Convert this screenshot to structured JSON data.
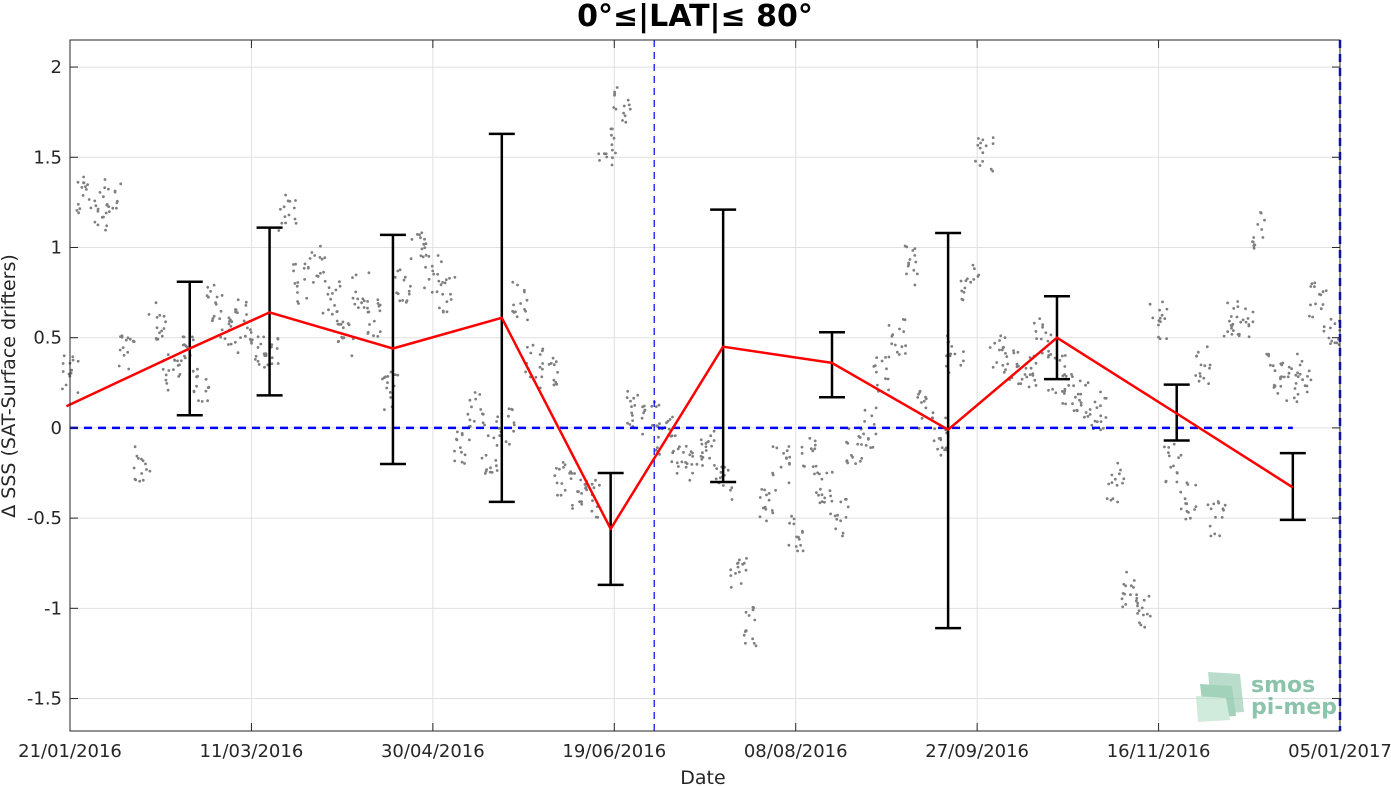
{
  "chart_data": {
    "type": "line",
    "title": "0°≤|LAT|≤ 80°",
    "xlabel": "Date",
    "ylabel": "Δ SSS (SAT-Surface drifters)",
    "x_range": [
      "2016-01-21",
      "2017-01-05"
    ],
    "ylim": [
      -1.68,
      2.15
    ],
    "grid": true,
    "x_tick_labels": [
      "21/01/2016",
      "11/03/2016",
      "30/04/2016",
      "19/06/2016",
      "08/08/2016",
      "27/09/2016",
      "16/11/2016",
      "05/01/2017"
    ],
    "x_tick_dates": [
      "2016-01-21",
      "2016-03-11",
      "2016-04-30",
      "2016-06-19",
      "2016-08-08",
      "2016-09-27",
      "2016-11-16",
      "2017-01-05"
    ],
    "y_ticks": [
      -1.5,
      -1,
      -0.5,
      0,
      0.5,
      1,
      1.5,
      2
    ],
    "y_tick_labels": [
      "-1.5",
      "-1",
      "-0.5",
      "0",
      "0.5",
      "1",
      "1.5",
      "2"
    ],
    "series": [
      {
        "style": "red line",
        "x": [
          "2016-01-20",
          "2016-02-23",
          "2016-03-16",
          "2016-04-19",
          "2016-05-19",
          "2016-06-18",
          "2016-07-19",
          "2016-08-18",
          "2016-09-19",
          "2016-10-19",
          "2016-11-21",
          "2016-12-23"
        ],
        "y": [
          0.12,
          0.44,
          0.64,
          0.44,
          0.61,
          -0.56,
          0.45,
          0.36,
          -0.01,
          0.5,
          0.08,
          -0.33
        ]
      },
      {
        "style": "black error bars",
        "x": [
          "2016-02-23",
          "2016-03-16",
          "2016-04-19",
          "2016-05-19",
          "2016-06-18",
          "2016-07-19",
          "2016-08-18",
          "2016-09-19",
          "2016-10-19",
          "2016-11-21",
          "2016-12-23"
        ],
        "low": [
          0.07,
          0.18,
          -0.2,
          -0.41,
          -0.87,
          -0.3,
          0.17,
          -1.11,
          0.27,
          -0.07,
          -0.51
        ],
        "high": [
          0.81,
          1.11,
          1.07,
          1.63,
          -0.25,
          1.21,
          0.53,
          1.08,
          0.73,
          0.24,
          -0.14
        ]
      },
      {
        "style": "grey scatter",
        "x": [
          "2016-01-21",
          "2016-01-25",
          "2016-01-29",
          "2016-02-02",
          "2016-02-06",
          "2016-02-10",
          "2016-02-14",
          "2016-02-18",
          "2016-02-22",
          "2016-02-26",
          "2016-03-01",
          "2016-03-05",
          "2016-03-09",
          "2016-03-13",
          "2016-03-17",
          "2016-03-21",
          "2016-03-25",
          "2016-03-29",
          "2016-04-02",
          "2016-04-06",
          "2016-04-10",
          "2016-04-14",
          "2016-04-18",
          "2016-04-22",
          "2016-04-26",
          "2016-04-30",
          "2016-05-04",
          "2016-05-08",
          "2016-05-12",
          "2016-05-16",
          "2016-05-20",
          "2016-05-24",
          "2016-05-28",
          "2016-06-01",
          "2016-06-05",
          "2016-06-09",
          "2016-06-13",
          "2016-06-17",
          "2016-06-21",
          "2016-06-25",
          "2016-06-29",
          "2016-07-03",
          "2016-07-07",
          "2016-07-11",
          "2016-07-15",
          "2016-07-19",
          "2016-07-23",
          "2016-07-27",
          "2016-07-31",
          "2016-08-04",
          "2016-08-08",
          "2016-08-12",
          "2016-08-16",
          "2016-08-20",
          "2016-08-24",
          "2016-08-28",
          "2016-09-01",
          "2016-09-05",
          "2016-09-09",
          "2016-09-13",
          "2016-09-17",
          "2016-09-21",
          "2016-09-25",
          "2016-09-29",
          "2016-10-03",
          "2016-10-07",
          "2016-10-11",
          "2016-10-15",
          "2016-10-19",
          "2016-10-23",
          "2016-10-27",
          "2016-10-31",
          "2016-11-04",
          "2016-11-08",
          "2016-11-12",
          "2016-11-16",
          "2016-11-20",
          "2016-11-24",
          "2016-11-28",
          "2016-12-02",
          "2016-12-06",
          "2016-12-10",
          "2016-12-14",
          "2016-12-18",
          "2016-12-22",
          "2016-12-26",
          "2016-12-30",
          "2017-01-03"
        ],
        "y": [
          0.3,
          1.3,
          1.2,
          1.3,
          0.4,
          -0.2,
          0.6,
          0.3,
          0.4,
          0.25,
          0.7,
          0.5,
          0.6,
          0.45,
          0.4,
          1.2,
          0.8,
          0.9,
          0.7,
          0.5,
          0.75,
          0.6,
          0.2,
          0.8,
          1.0,
          0.85,
          0.75,
          -0.1,
          0.1,
          -0.15,
          0.0,
          0.7,
          0.35,
          0.3,
          -0.3,
          -0.35,
          -0.4,
          1.55,
          1.8,
          0.1,
          0.05,
          -0.05,
          -0.15,
          -0.2,
          -0.1,
          -0.3,
          -0.8,
          -1.1,
          -0.45,
          -0.2,
          -0.6,
          -0.15,
          -0.35,
          -0.5,
          -0.1,
          0.0,
          0.3,
          0.5,
          0.9,
          0.1,
          -0.05,
          0.4,
          0.8,
          1.5,
          0.4,
          0.35,
          0.3,
          0.5,
          0.3,
          0.2,
          0.15,
          0.1,
          -0.3,
          -0.9,
          -1.0,
          0.6,
          -0.2,
          -0.4,
          0.35,
          -0.5,
          0.6,
          0.6,
          1.1,
          0.3,
          0.25,
          0.3,
          0.7,
          0.55
        ]
      },
      {
        "style": "blue dashed horizontal line",
        "x": [
          "2016-01-21",
          "2016-12-23"
        ],
        "y": [
          0,
          0
        ]
      }
    ],
    "vertical_markers": [
      {
        "x": "2016-06-30",
        "style": "thin blue dashed"
      },
      {
        "x": "2017-01-05",
        "style": "thick blue dashed"
      }
    ],
    "colors": {
      "mean_line": "#ff0000",
      "error_bars": "#000000",
      "scatter": "#7f7f7f",
      "reference": "#0000ff",
      "grid": "#e0e0e0"
    }
  },
  "watermark": {
    "line1": "smos",
    "line2": "pi-mep",
    "color": "#5fae8a"
  }
}
